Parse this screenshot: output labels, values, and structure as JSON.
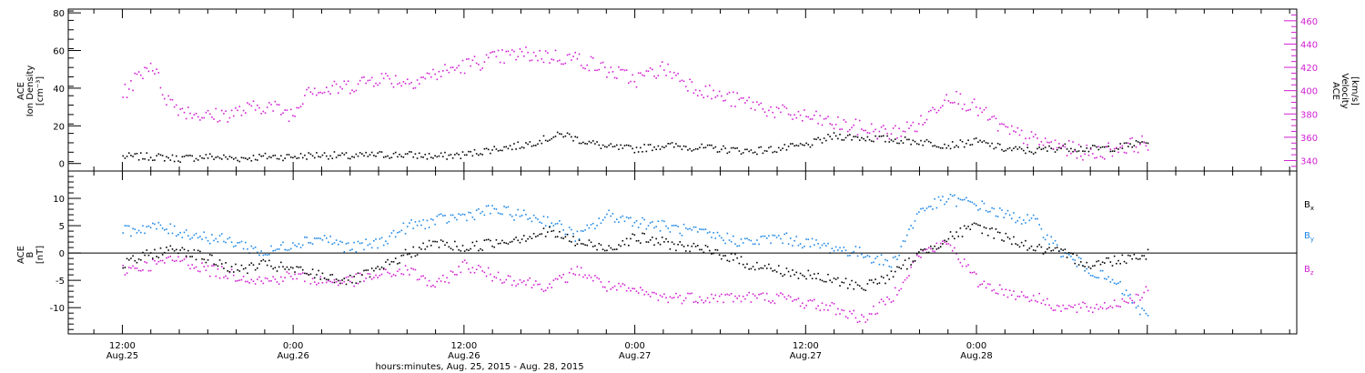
{
  "chart_data": [
    {
      "type": "scatter",
      "panel": "top",
      "ylabel_left": [
        "ACE",
        "Ion Density",
        "[cm⁻³]"
      ],
      "ylabel_right": [
        "ACE",
        "Velocity",
        "[km/s]"
      ],
      "ylim_left": [
        -4,
        82
      ],
      "ylim_right": [
        331,
        470
      ],
      "yticks_left": [
        0,
        20,
        40,
        60,
        80
      ],
      "yticks_right": [
        340,
        360,
        380,
        400,
        420,
        440,
        460
      ],
      "colors": {
        "density": "#000000",
        "velocity": "#d21ed2"
      },
      "series": [
        {
          "name": "",
          "axis": "left",
          "color": "#000000",
          "x_hours": [
            0,
            2,
            4,
            6,
            8,
            10,
            12,
            14,
            16,
            18,
            20,
            22,
            24,
            26,
            28,
            30,
            31,
            32,
            34,
            36,
            38,
            40,
            42,
            44,
            46,
            48,
            50,
            52,
            54,
            56,
            58,
            60,
            62,
            64,
            66,
            68,
            70,
            72
          ],
          "values": [
            4,
            4,
            3,
            4,
            3,
            4,
            4,
            5,
            4,
            5,
            5,
            4,
            5,
            8,
            10,
            14,
            16,
            13,
            9,
            8,
            10,
            9,
            8,
            7,
            8,
            10,
            15,
            14,
            13,
            12,
            10,
            12,
            8,
            7,
            9,
            8,
            9,
            12
          ]
        },
        {
          "name": "",
          "axis": "right",
          "color": "#d21ed2",
          "x_hours": [
            0,
            1,
            2,
            3,
            4,
            6,
            8,
            10,
            12,
            13,
            14,
            16,
            18,
            20,
            22,
            24,
            26,
            28,
            30,
            32,
            34,
            36,
            38,
            40,
            42,
            44,
            46,
            48,
            50,
            52,
            54,
            56,
            58,
            60,
            62,
            64,
            66,
            68,
            70,
            72
          ],
          "values": [
            397,
            412,
            425,
            395,
            385,
            378,
            382,
            388,
            380,
            405,
            400,
            405,
            412,
            408,
            415,
            422,
            428,
            432,
            430,
            428,
            418,
            410,
            420,
            405,
            395,
            390,
            382,
            378,
            372,
            368,
            364,
            372,
            398,
            385,
            366,
            358,
            352,
            346,
            352,
            356
          ]
        }
      ]
    },
    {
      "type": "scatter",
      "panel": "bottom",
      "ylabel_left": [
        "ACE",
        "B",
        "[nT]"
      ],
      "ylim": [
        -14.8,
        15
      ],
      "yticks": [
        -10,
        -5,
        0,
        5,
        10
      ],
      "zero_line": true,
      "legend": [
        "B",
        "B",
        "B"
      ],
      "legend_subscripts": [
        "x",
        "y",
        "z"
      ],
      "legend_placement": "right",
      "colors": {
        "Bx": "#000000",
        "By": "#1e87e6",
        "Bz": "#d21ed2"
      },
      "series": [
        {
          "name": "Bx",
          "color": "#000000",
          "x_hours": [
            0,
            2,
            4,
            6,
            8,
            10,
            12,
            14,
            16,
            18,
            20,
            22,
            24,
            26,
            28,
            30,
            32,
            34,
            36,
            38,
            40,
            42,
            44,
            46,
            48,
            50,
            52,
            54,
            56,
            58,
            60,
            62,
            64,
            66,
            68,
            70,
            72
          ],
          "values": [
            -2,
            0,
            1,
            -1,
            -3,
            -2,
            -3,
            -4,
            -5,
            -3,
            0,
            2,
            1,
            2,
            3,
            4,
            2,
            1,
            3,
            2,
            1,
            0,
            -2,
            -3,
            -4,
            -5,
            -6,
            -4,
            0,
            3,
            5,
            3,
            1,
            0,
            -2,
            -1,
            0
          ]
        },
        {
          "name": "By",
          "color": "#1e87e6",
          "x_hours": [
            0,
            2,
            4,
            6,
            8,
            10,
            12,
            14,
            16,
            18,
            20,
            22,
            24,
            26,
            28,
            30,
            32,
            34,
            36,
            38,
            40,
            42,
            44,
            46,
            48,
            50,
            52,
            54,
            56,
            58,
            60,
            62,
            64,
            66,
            68,
            70,
            72
          ],
          "values": [
            4,
            5,
            4,
            3,
            2,
            0,
            2,
            3,
            1,
            2,
            5,
            6,
            7,
            8,
            7,
            6,
            3,
            7,
            6,
            5,
            4,
            3,
            2,
            3,
            2,
            1,
            0,
            -2,
            8,
            10,
            9,
            7,
            6,
            0,
            -3,
            -6,
            -12
          ]
        },
        {
          "name": "Bz",
          "color": "#d21ed2",
          "x_hours": [
            0,
            2,
            4,
            6,
            8,
            10,
            12,
            14,
            16,
            18,
            20,
            22,
            24,
            26,
            28,
            30,
            32,
            34,
            36,
            38,
            40,
            42,
            44,
            46,
            48,
            50,
            52,
            54,
            56,
            58,
            60,
            62,
            64,
            66,
            68,
            70,
            72
          ],
          "values": [
            -3,
            -2,
            -1,
            -3,
            -4,
            -5,
            -4,
            -5,
            -5,
            -4,
            -3,
            -6,
            -2,
            -4,
            -5,
            -6,
            -3,
            -6,
            -7,
            -8,
            -8,
            -8,
            -8,
            -8,
            -9,
            -10,
            -12,
            -8,
            0,
            2,
            -5,
            -7,
            -8,
            -10,
            -10,
            -9,
            -7
          ]
        }
      ]
    }
  ],
  "x_axis": {
    "tick_labels": [
      {
        "time": "12:00",
        "date": "Aug.25",
        "hour": 0
      },
      {
        "time": "0:00",
        "date": "Aug.26",
        "hour": 12
      },
      {
        "time": "12:00",
        "date": "Aug.26",
        "hour": 24
      },
      {
        "time": "0:00",
        "date": "Aug.27",
        "hour": 36
      },
      {
        "time": "12:00",
        "date": "Aug.27",
        "hour": 48
      },
      {
        "time": "0:00",
        "date": "Aug.28",
        "hour": 60
      }
    ],
    "xlim_hours": [
      -3.8,
      82.5
    ],
    "minor_tick_step_hours": 2,
    "label": "hours:minutes, Aug. 25, 2015 - Aug. 28, 2015"
  }
}
